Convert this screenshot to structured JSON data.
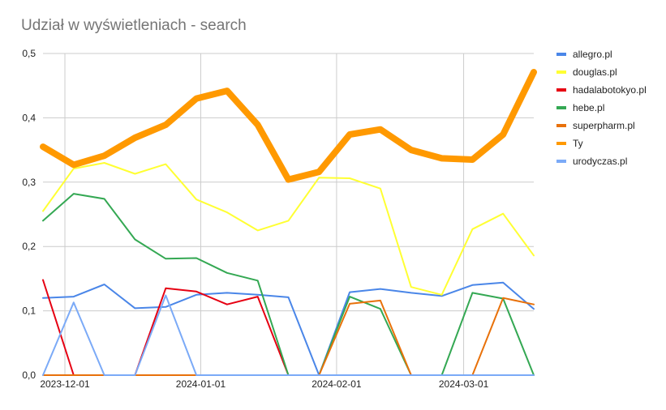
{
  "chart_data": {
    "type": "line",
    "title": "Udział w wyświetleniach - search",
    "xlabel": "",
    "ylabel": "",
    "x": [
      "2023-11-26",
      "2023-12-03",
      "2023-12-10",
      "2023-12-17",
      "2023-12-24",
      "2023-12-31",
      "2024-01-07",
      "2024-01-14",
      "2024-01-21",
      "2024-01-28",
      "2024-02-04",
      "2024-02-11",
      "2024-02-18",
      "2024-02-25",
      "2024-03-03",
      "2024-03-10",
      "2024-03-17"
    ],
    "x_range": [
      "2023-11-26",
      "2024-03-17"
    ],
    "x_ticks": [
      {
        "date": "2023-12-01",
        "label": "2023-12-01"
      },
      {
        "date": "2024-01-01",
        "label": "2024-01-01"
      },
      {
        "date": "2024-02-01",
        "label": "2024-02-01"
      },
      {
        "date": "2024-03-01",
        "label": "2024-03-01"
      }
    ],
    "ylim": [
      0,
      0.5
    ],
    "y_ticks": [
      {
        "value": 0,
        "label": "0,0"
      },
      {
        "value": 0.1,
        "label": "0,1"
      },
      {
        "value": 0.2,
        "label": "0,2"
      },
      {
        "value": 0.3,
        "label": "0,3"
      },
      {
        "value": 0.4,
        "label": "0,4"
      },
      {
        "value": 0.5,
        "label": "0,5"
      }
    ],
    "grid": true,
    "legend": "right",
    "series": [
      {
        "name": "allegro.pl",
        "color": "#4a86e8",
        "thick": false,
        "values": [
          0.12,
          0.122,
          0.141,
          0.104,
          0.106,
          0.125,
          0.128,
          0.125,
          0.121,
          0.0,
          0.129,
          0.134,
          0.128,
          0.123,
          0.14,
          0.144,
          0.103
        ]
      },
      {
        "name": "douglas.pl",
        "color": "#ffff33",
        "thick": false,
        "values": [
          0.255,
          0.321,
          0.33,
          0.313,
          0.328,
          0.273,
          0.253,
          0.225,
          0.24,
          0.307,
          0.306,
          0.29,
          0.137,
          0.125,
          0.227,
          0.251,
          0.186
        ]
      },
      {
        "name": "hadalabotokyo.pl",
        "color": "#e60012",
        "thick": false,
        "values": [
          0.148,
          0.0,
          0.0,
          0.0,
          0.135,
          0.13,
          0.11,
          0.122,
          0.0,
          0.0,
          0.0,
          0.0,
          0.0,
          0.0,
          0.0,
          0.0,
          0.0
        ]
      },
      {
        "name": "hebe.pl",
        "color": "#34a853",
        "thick": false,
        "values": [
          0.24,
          0.282,
          0.274,
          0.211,
          0.181,
          0.182,
          0.159,
          0.147,
          0.0,
          0.0,
          0.122,
          0.103,
          0.0,
          0.0,
          0.128,
          0.119,
          0.0
        ]
      },
      {
        "name": "superpharm.pl",
        "color": "#e8710a",
        "thick": false,
        "values": [
          0.0,
          0.0,
          0.0,
          0.0,
          0.0,
          0.0,
          0.0,
          0.0,
          0.0,
          0.0,
          0.111,
          0.116,
          0.0,
          0.0,
          0.0,
          0.12,
          0.11
        ]
      },
      {
        "name": "Ty",
        "color": "#ff9900",
        "thick": true,
        "values": [
          0.355,
          0.327,
          0.341,
          0.369,
          0.389,
          0.43,
          0.442,
          0.389,
          0.304,
          0.316,
          0.374,
          0.382,
          0.35,
          0.337,
          0.335,
          0.374,
          0.471
        ]
      },
      {
        "name": "urodyczas.pl",
        "color": "#7baaf7",
        "thick": false,
        "values": [
          0.0,
          0.113,
          0.0,
          0.0,
          0.124,
          0.0,
          0.0,
          0.0,
          0.0,
          0.0,
          0.0,
          0.0,
          0.0,
          0.0,
          0.0,
          0.0,
          0.0
        ]
      }
    ]
  }
}
